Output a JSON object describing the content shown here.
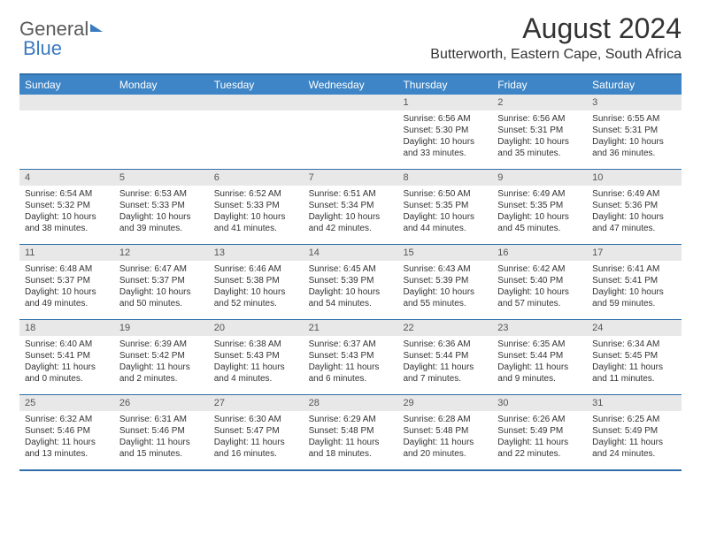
{
  "brand": {
    "part1": "General",
    "part2": "Blue"
  },
  "title": "August 2024",
  "location": "Butterworth, Eastern Cape, South Africa",
  "colors": {
    "header_bg": "#3d85c6",
    "header_text": "#ffffff",
    "border": "#2f6ea8",
    "daynum_bg": "#e8e8e8",
    "body_text": "#333333"
  },
  "day_names": [
    "Sunday",
    "Monday",
    "Tuesday",
    "Wednesday",
    "Thursday",
    "Friday",
    "Saturday"
  ],
  "weeks": [
    [
      null,
      null,
      null,
      null,
      {
        "n": "1",
        "sr": "6:56 AM",
        "ss": "5:30 PM",
        "d": "10 hours and 33 minutes."
      },
      {
        "n": "2",
        "sr": "6:56 AM",
        "ss": "5:31 PM",
        "d": "10 hours and 35 minutes."
      },
      {
        "n": "3",
        "sr": "6:55 AM",
        "ss": "5:31 PM",
        "d": "10 hours and 36 minutes."
      }
    ],
    [
      {
        "n": "4",
        "sr": "6:54 AM",
        "ss": "5:32 PM",
        "d": "10 hours and 38 minutes."
      },
      {
        "n": "5",
        "sr": "6:53 AM",
        "ss": "5:33 PM",
        "d": "10 hours and 39 minutes."
      },
      {
        "n": "6",
        "sr": "6:52 AM",
        "ss": "5:33 PM",
        "d": "10 hours and 41 minutes."
      },
      {
        "n": "7",
        "sr": "6:51 AM",
        "ss": "5:34 PM",
        "d": "10 hours and 42 minutes."
      },
      {
        "n": "8",
        "sr": "6:50 AM",
        "ss": "5:35 PM",
        "d": "10 hours and 44 minutes."
      },
      {
        "n": "9",
        "sr": "6:49 AM",
        "ss": "5:35 PM",
        "d": "10 hours and 45 minutes."
      },
      {
        "n": "10",
        "sr": "6:49 AM",
        "ss": "5:36 PM",
        "d": "10 hours and 47 minutes."
      }
    ],
    [
      {
        "n": "11",
        "sr": "6:48 AM",
        "ss": "5:37 PM",
        "d": "10 hours and 49 minutes."
      },
      {
        "n": "12",
        "sr": "6:47 AM",
        "ss": "5:37 PM",
        "d": "10 hours and 50 minutes."
      },
      {
        "n": "13",
        "sr": "6:46 AM",
        "ss": "5:38 PM",
        "d": "10 hours and 52 minutes."
      },
      {
        "n": "14",
        "sr": "6:45 AM",
        "ss": "5:39 PM",
        "d": "10 hours and 54 minutes."
      },
      {
        "n": "15",
        "sr": "6:43 AM",
        "ss": "5:39 PM",
        "d": "10 hours and 55 minutes."
      },
      {
        "n": "16",
        "sr": "6:42 AM",
        "ss": "5:40 PM",
        "d": "10 hours and 57 minutes."
      },
      {
        "n": "17",
        "sr": "6:41 AM",
        "ss": "5:41 PM",
        "d": "10 hours and 59 minutes."
      }
    ],
    [
      {
        "n": "18",
        "sr": "6:40 AM",
        "ss": "5:41 PM",
        "d": "11 hours and 0 minutes."
      },
      {
        "n": "19",
        "sr": "6:39 AM",
        "ss": "5:42 PM",
        "d": "11 hours and 2 minutes."
      },
      {
        "n": "20",
        "sr": "6:38 AM",
        "ss": "5:43 PM",
        "d": "11 hours and 4 minutes."
      },
      {
        "n": "21",
        "sr": "6:37 AM",
        "ss": "5:43 PM",
        "d": "11 hours and 6 minutes."
      },
      {
        "n": "22",
        "sr": "6:36 AM",
        "ss": "5:44 PM",
        "d": "11 hours and 7 minutes."
      },
      {
        "n": "23",
        "sr": "6:35 AM",
        "ss": "5:44 PM",
        "d": "11 hours and 9 minutes."
      },
      {
        "n": "24",
        "sr": "6:34 AM",
        "ss": "5:45 PM",
        "d": "11 hours and 11 minutes."
      }
    ],
    [
      {
        "n": "25",
        "sr": "6:32 AM",
        "ss": "5:46 PM",
        "d": "11 hours and 13 minutes."
      },
      {
        "n": "26",
        "sr": "6:31 AM",
        "ss": "5:46 PM",
        "d": "11 hours and 15 minutes."
      },
      {
        "n": "27",
        "sr": "6:30 AM",
        "ss": "5:47 PM",
        "d": "11 hours and 16 minutes."
      },
      {
        "n": "28",
        "sr": "6:29 AM",
        "ss": "5:48 PM",
        "d": "11 hours and 18 minutes."
      },
      {
        "n": "29",
        "sr": "6:28 AM",
        "ss": "5:48 PM",
        "d": "11 hours and 20 minutes."
      },
      {
        "n": "30",
        "sr": "6:26 AM",
        "ss": "5:49 PM",
        "d": "11 hours and 22 minutes."
      },
      {
        "n": "31",
        "sr": "6:25 AM",
        "ss": "5:49 PM",
        "d": "11 hours and 24 minutes."
      }
    ]
  ],
  "labels": {
    "sunrise": "Sunrise: ",
    "sunset": "Sunset: ",
    "daylight": "Daylight: "
  }
}
